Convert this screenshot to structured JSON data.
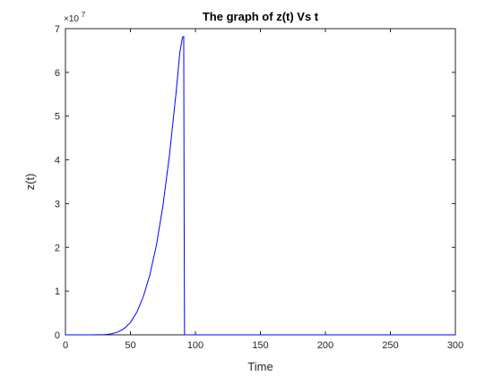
{
  "chart_data": {
    "type": "line",
    "title": "The graph of z(t) Vs t",
    "xlabel": "Time",
    "ylabel": "z(t)",
    "xlim": [
      0,
      300
    ],
    "ylim": [
      0,
      7
    ],
    "y_multiplier_base": "×10",
    "y_multiplier_exp": "7",
    "xticks": [
      0,
      50,
      100,
      150,
      200,
      250,
      300
    ],
    "yticks": [
      0,
      1,
      2,
      3,
      4,
      5,
      6,
      7
    ],
    "grid": false,
    "legend": "none",
    "line_color": "#0000ff",
    "series": [
      {
        "x": [
          0,
          20,
          30,
          35,
          40,
          45,
          50,
          55,
          60,
          65,
          70,
          75,
          80,
          85,
          88,
          90,
          91,
          91.3,
          91.6,
          100,
          150,
          200,
          250,
          300
        ],
        "y": [
          0,
          0,
          0.005,
          0.02,
          0.06,
          0.14,
          0.28,
          0.52,
          0.88,
          1.38,
          2.05,
          2.95,
          4.1,
          5.5,
          6.45,
          6.8,
          6.82,
          3.0,
          0,
          0,
          0,
          0,
          0,
          0
        ]
      }
    ]
  }
}
